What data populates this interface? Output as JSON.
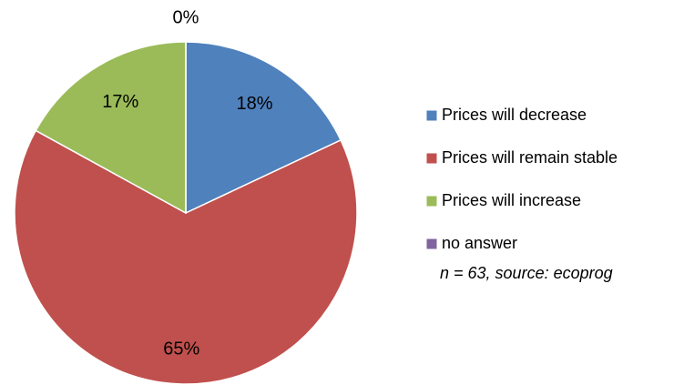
{
  "chart_data": {
    "type": "pie",
    "categories": [
      "Prices will decrease",
      "Prices will remain stable",
      "Prices will increase",
      "no answer"
    ],
    "values": [
      18,
      65,
      17,
      0
    ],
    "value_labels": [
      "18%",
      "65%",
      "17%",
      "0%"
    ],
    "colors": [
      "#4f81bd",
      "#c0504d",
      "#9bbb59",
      "#8064a2"
    ],
    "annotation": "n = 63, source:  ecoprog",
    "legend": "right"
  }
}
